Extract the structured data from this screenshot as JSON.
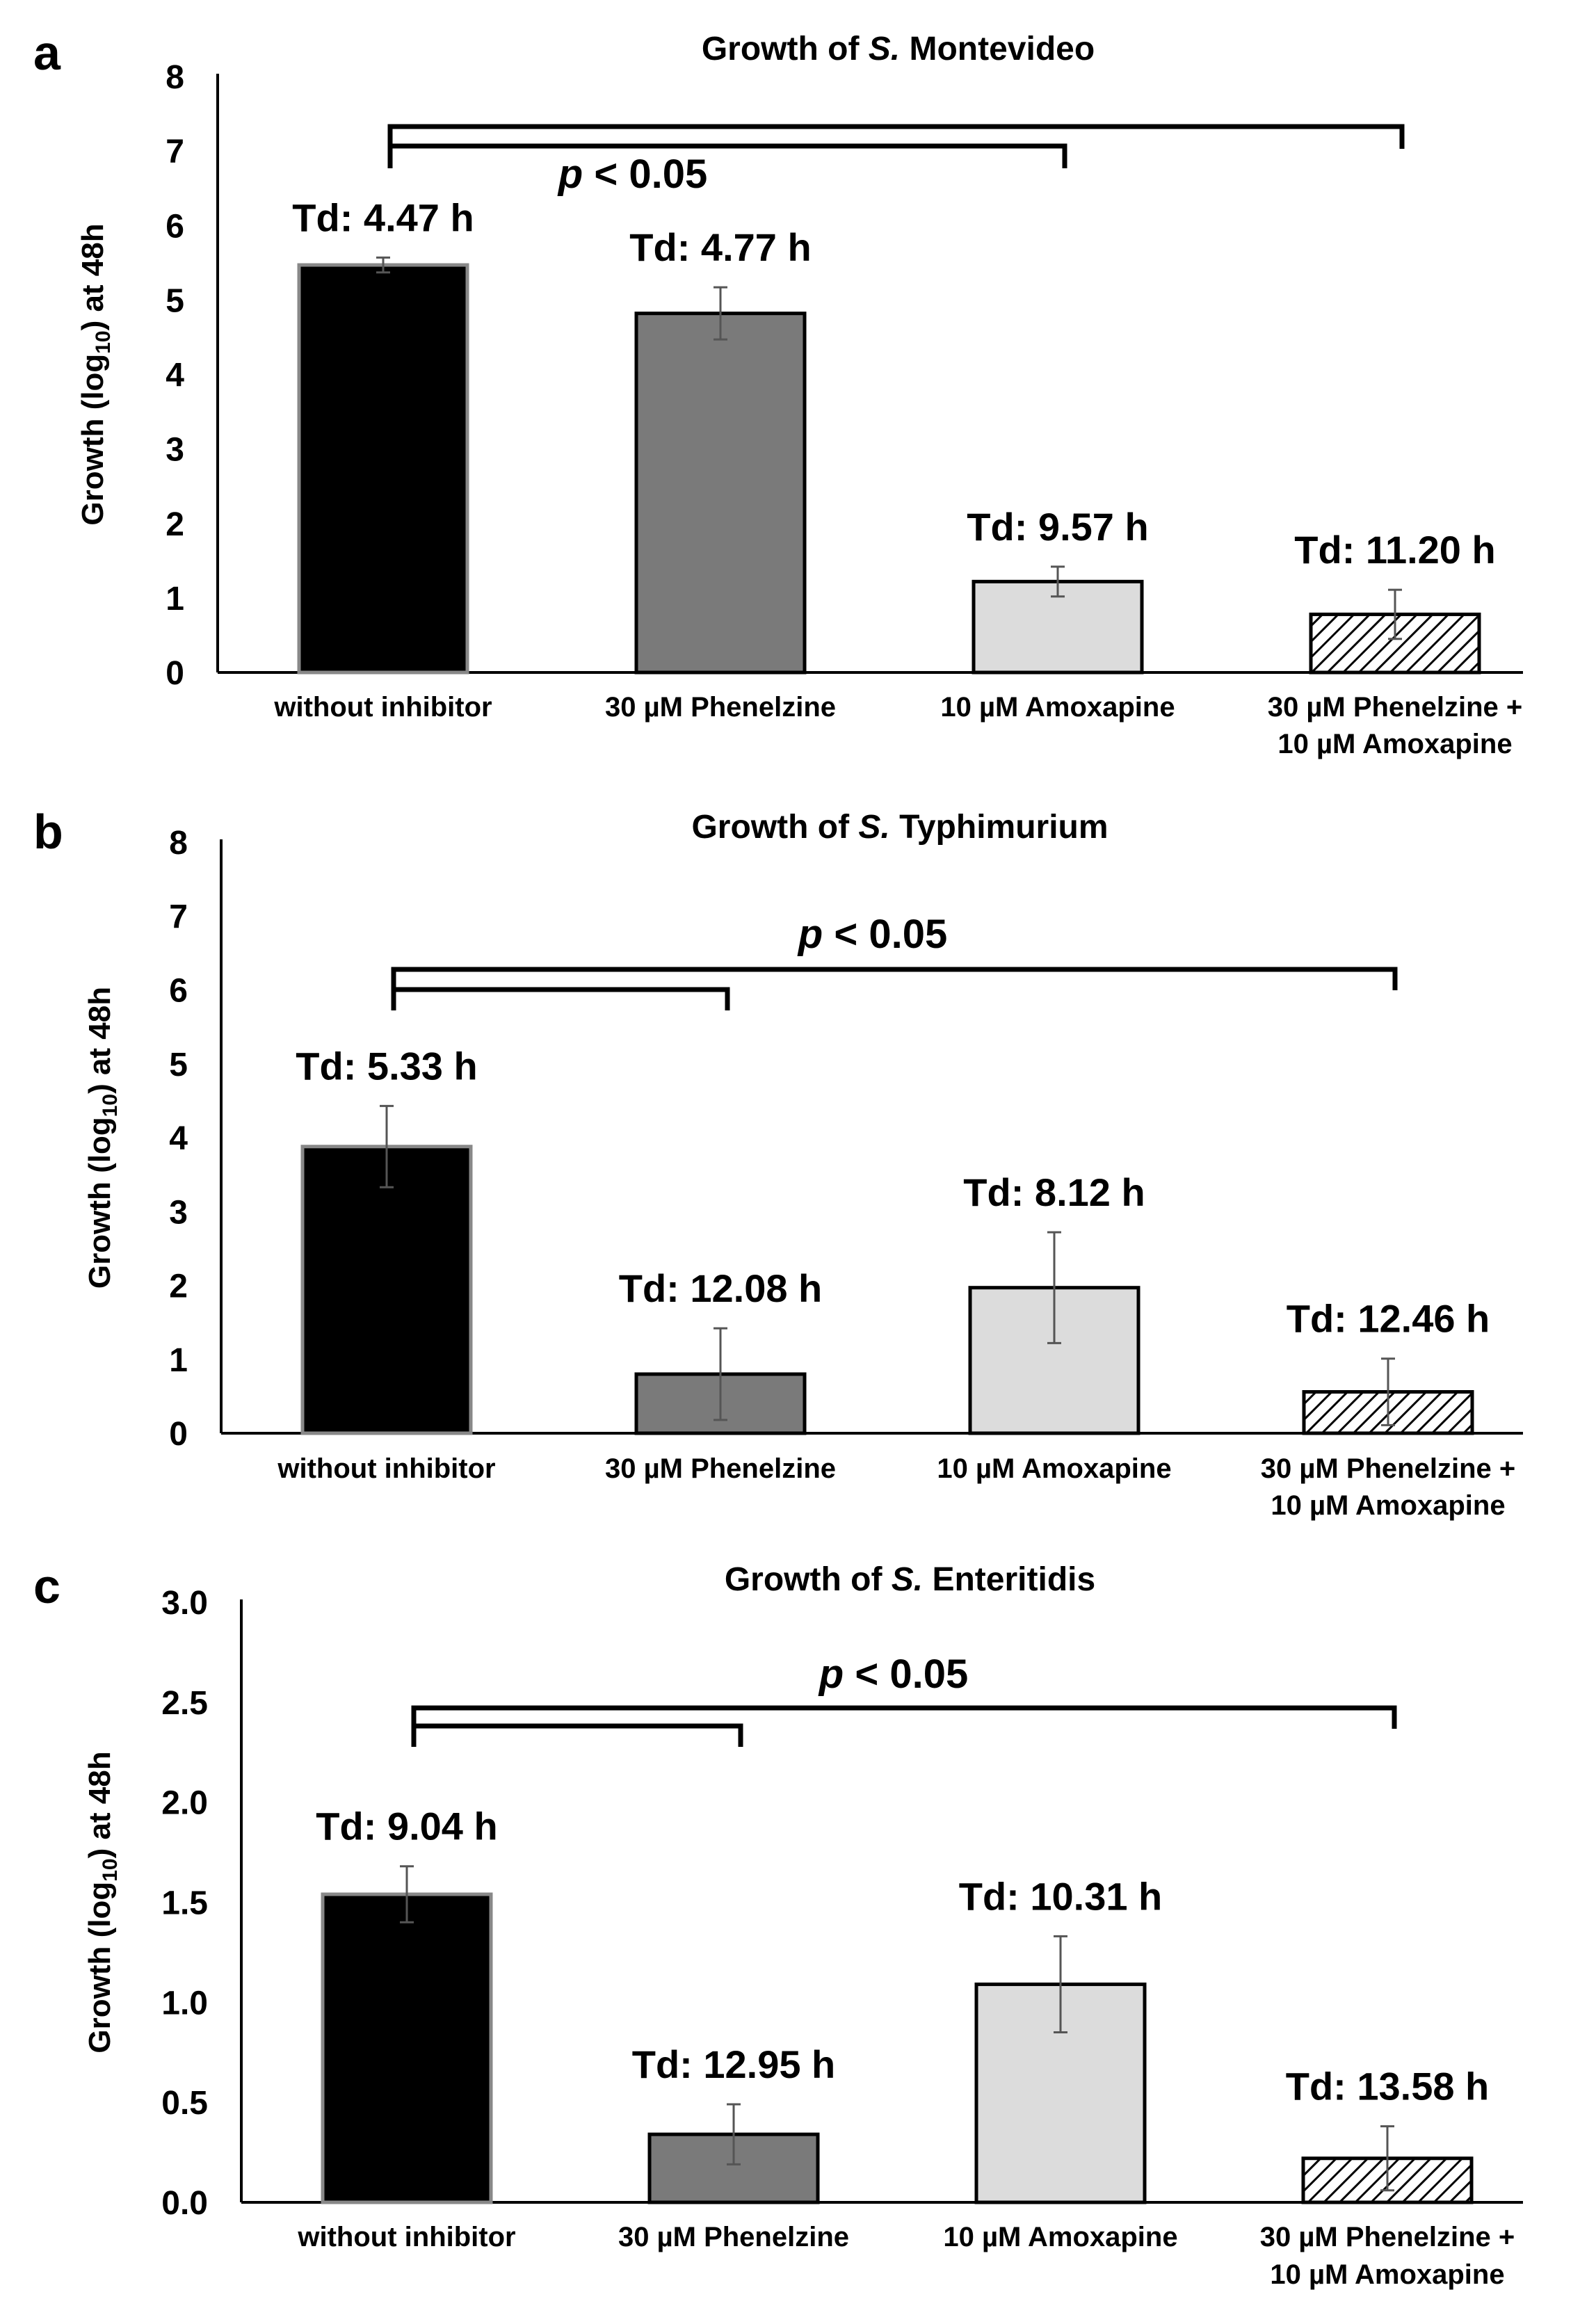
{
  "colors": {
    "without": "#000000",
    "phenelzine": "#7a7a7a",
    "amoxapine": "#dcdcdc",
    "combo_hatch": "#000000",
    "axis": "#000000",
    "errorbar": "#555555"
  },
  "chart_data": [
    {
      "panel": "a",
      "type": "bar",
      "title_prefix": "Growth of ",
      "title_italic": "S.",
      "title_suffix": " Montevideo",
      "ylabel_prefix": "Growth (log",
      "ylabel_sub": "10",
      "ylabel_suffix": ") at 48h",
      "ylim": [
        0,
        8
      ],
      "ticks": [
        "0",
        "1",
        "2",
        "3",
        "4",
        "5",
        "6",
        "7",
        "8"
      ],
      "tick_values": [
        0,
        1,
        2,
        3,
        4,
        5,
        6,
        7,
        8
      ],
      "categories": [
        {
          "line1": "without inhibitor",
          "line2": ""
        },
        {
          "line1": "30 µM Phenelzine",
          "line2": ""
        },
        {
          "line1": "10 µM Amoxapine",
          "line2": ""
        },
        {
          "line1": "30 µM Phenelzine +",
          "line2": "10 µM Amoxapine"
        }
      ],
      "values": [
        5.47,
        4.82,
        1.22,
        0.78
      ],
      "errors": [
        0.1,
        0.35,
        0.2,
        0.33
      ],
      "annotations": [
        "Td: 4.47 h",
        "Td: 4.77 h",
        "Td: 9.57 h",
        "Td: 11.20 h"
      ],
      "significance": {
        "p_italic": "p",
        "p_rest": " < 0.05",
        "comparisons": [
          [
            0,
            2
          ],
          [
            0,
            3
          ]
        ]
      }
    },
    {
      "panel": "b",
      "type": "bar",
      "title_prefix": "Growth of ",
      "title_italic": "S.",
      "title_suffix": " Typhimurium",
      "ylabel_prefix": "Growth (log",
      "ylabel_sub": "10",
      "ylabel_suffix": ") at 48h",
      "ylim": [
        0,
        8
      ],
      "ticks": [
        "0",
        "1",
        "2",
        "3",
        "4",
        "5",
        "6",
        "7",
        "8"
      ],
      "tick_values": [
        0,
        1,
        2,
        3,
        4,
        5,
        6,
        7,
        8
      ],
      "categories": [
        {
          "line1": "without inhibitor",
          "line2": ""
        },
        {
          "line1": "30 µM Phenelzine",
          "line2": ""
        },
        {
          "line1": "10 µM Amoxapine",
          "line2": ""
        },
        {
          "line1": "30 µM Phenelzine +",
          "line2": "10 µM Amoxapine"
        }
      ],
      "values": [
        3.88,
        0.8,
        1.97,
        0.56
      ],
      "errors": [
        0.55,
        0.62,
        0.75,
        0.45
      ],
      "annotations": [
        "Td: 5.33 h",
        "Td: 12.08 h",
        "Td: 8.12 h",
        "Td: 12.46 h"
      ],
      "significance": {
        "p_italic": "p",
        "p_rest": " < 0.05",
        "comparisons": [
          [
            0,
            1
          ],
          [
            0,
            3
          ]
        ]
      }
    },
    {
      "panel": "c",
      "type": "bar",
      "title_prefix": "Growth of ",
      "title_italic": "S.",
      "title_suffix": " Enteritidis",
      "ylabel_prefix": "Growth (log",
      "ylabel_sub": "10",
      "ylabel_suffix": ") at 48h",
      "ylim": [
        0,
        3
      ],
      "ticks": [
        "0.0",
        "0.5",
        "1.0",
        "1.5",
        "2.0",
        "2.5",
        "3.0"
      ],
      "tick_values": [
        0,
        0.5,
        1,
        1.5,
        2,
        2.5,
        3
      ],
      "categories": [
        {
          "line1": "without inhibitor",
          "line2": ""
        },
        {
          "line1": "30 µM Phenelzine",
          "line2": ""
        },
        {
          "line1": "10 µM Amoxapine",
          "line2": ""
        },
        {
          "line1": "30 µM Phenelzine +",
          "line2": "10 µM Amoxapine"
        }
      ],
      "values": [
        1.54,
        0.34,
        1.09,
        0.22
      ],
      "errors": [
        0.14,
        0.15,
        0.24,
        0.16
      ],
      "annotations": [
        "Td: 9.04 h",
        "Td: 12.95 h",
        "Td: 10.31 h",
        "Td: 13.58 h"
      ],
      "significance": {
        "p_italic": "p",
        "p_rest": " < 0.05",
        "comparisons": [
          [
            0,
            1
          ],
          [
            0,
            3
          ]
        ]
      }
    }
  ]
}
